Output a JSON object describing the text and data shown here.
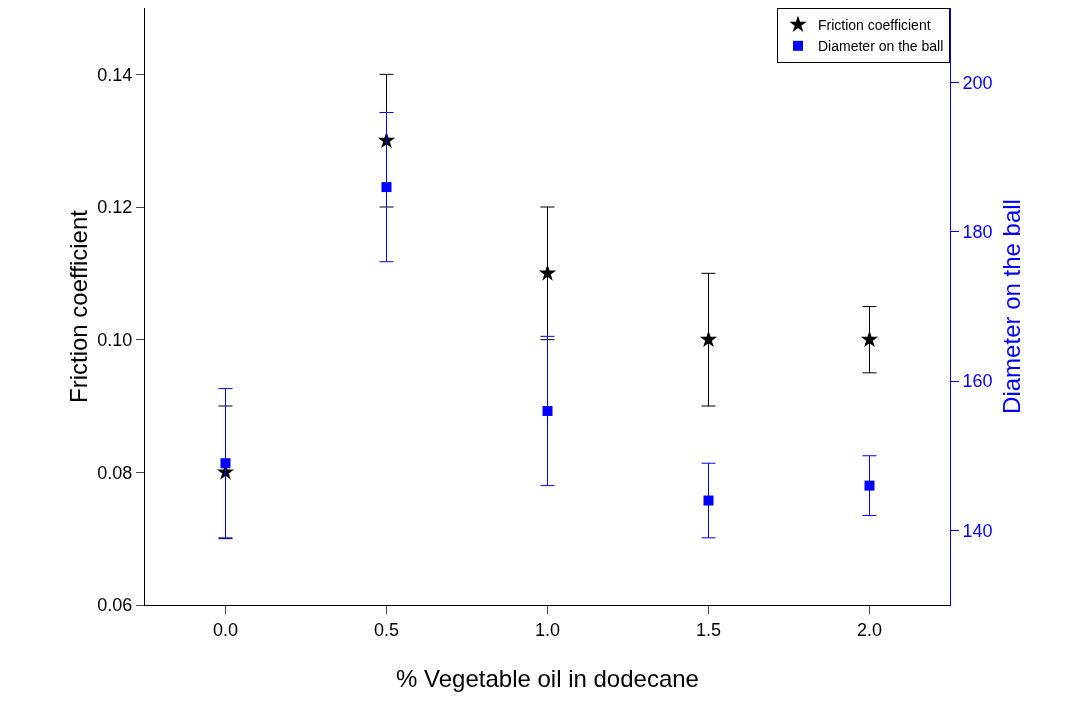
{
  "chart_data": {
    "type": "scatter",
    "xlabel": "% Vegetable oil in dodecane",
    "ylabel": "Friction coefficient",
    "y2label": "Diameter on the ball",
    "x": [
      0,
      0.5,
      1,
      1.5,
      2
    ],
    "series": [
      {
        "name": "Friction coefficient",
        "color": "#000000",
        "marker": "star",
        "values": [
          0.08,
          0.13,
          0.11,
          0.1,
          0.1
        ],
        "errors": [
          0.01,
          0.01,
          0.01,
          0.01,
          0.005
        ]
      },
      {
        "name": "Diameter on the ball",
        "color": "#0000ff",
        "marker": "square",
        "axis": "y2",
        "values": [
          149,
          186,
          156,
          144,
          146
        ],
        "errors": [
          10,
          10,
          10,
          5,
          4
        ]
      }
    ],
    "xlim": [
      -0.25,
      2.25
    ],
    "xticks": [
      {
        "value": 0,
        "label": "0.0"
      },
      {
        "value": 0.5,
        "label": "0.5"
      },
      {
        "value": 1,
        "label": "1.0"
      },
      {
        "value": 1.5,
        "label": "1.5"
      },
      {
        "value": 2,
        "label": "2.0"
      }
    ],
    "ylim": [
      0.06,
      0.15
    ],
    "yticks": [
      {
        "value": 0.06,
        "label": "0.06"
      },
      {
        "value": 0.08,
        "label": "0.08"
      },
      {
        "value": 0.1,
        "label": "0.10"
      },
      {
        "value": 0.12,
        "label": "0.12"
      },
      {
        "value": 0.14,
        "label": "0.14"
      }
    ],
    "y2lim": [
      130,
      210
    ],
    "y2ticks": [
      140,
      160,
      180,
      200
    ],
    "grid": false,
    "legend": "top right"
  }
}
